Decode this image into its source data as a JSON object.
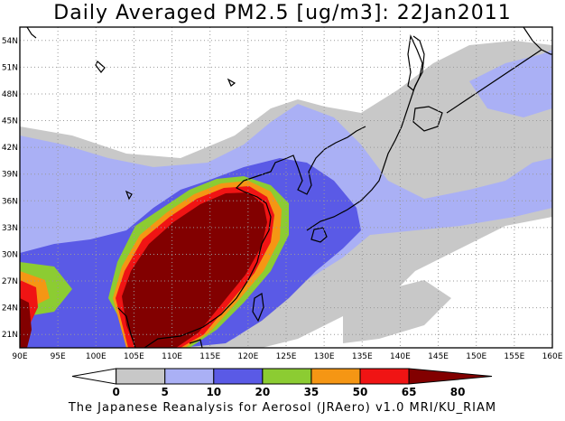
{
  "title": "Daily Averaged PM2.5 [ug/m3]: 22Jan2011",
  "footer": "The Japanese Reanalysis for Aerosol (JRAero) v1.0 MRI/KU_RIAM",
  "map": {
    "lon_range": [
      90,
      160
    ],
    "lat_range": [
      19.5,
      55.5
    ],
    "x_ticks": [
      "90E",
      "95E",
      "100E",
      "105E",
      "110E",
      "115E",
      "120E",
      "125E",
      "130E",
      "135E",
      "140E",
      "145E",
      "150E",
      "155E",
      "160E"
    ],
    "y_ticks": [
      "54N",
      "51N",
      "48N",
      "45N",
      "42N",
      "39N",
      "36N",
      "33N",
      "30N",
      "27N",
      "24N",
      "21N"
    ],
    "grid": "dotted"
  },
  "colorbar": {
    "labels": [
      "0",
      "5",
      "10",
      "20",
      "35",
      "50",
      "65",
      "80"
    ],
    "colors": [
      "#ffffff",
      "#c8c8c8",
      "#aab0f5",
      "#5a5ae6",
      "#8ccc32",
      "#f59614",
      "#f01414",
      "#820000"
    ]
  }
}
